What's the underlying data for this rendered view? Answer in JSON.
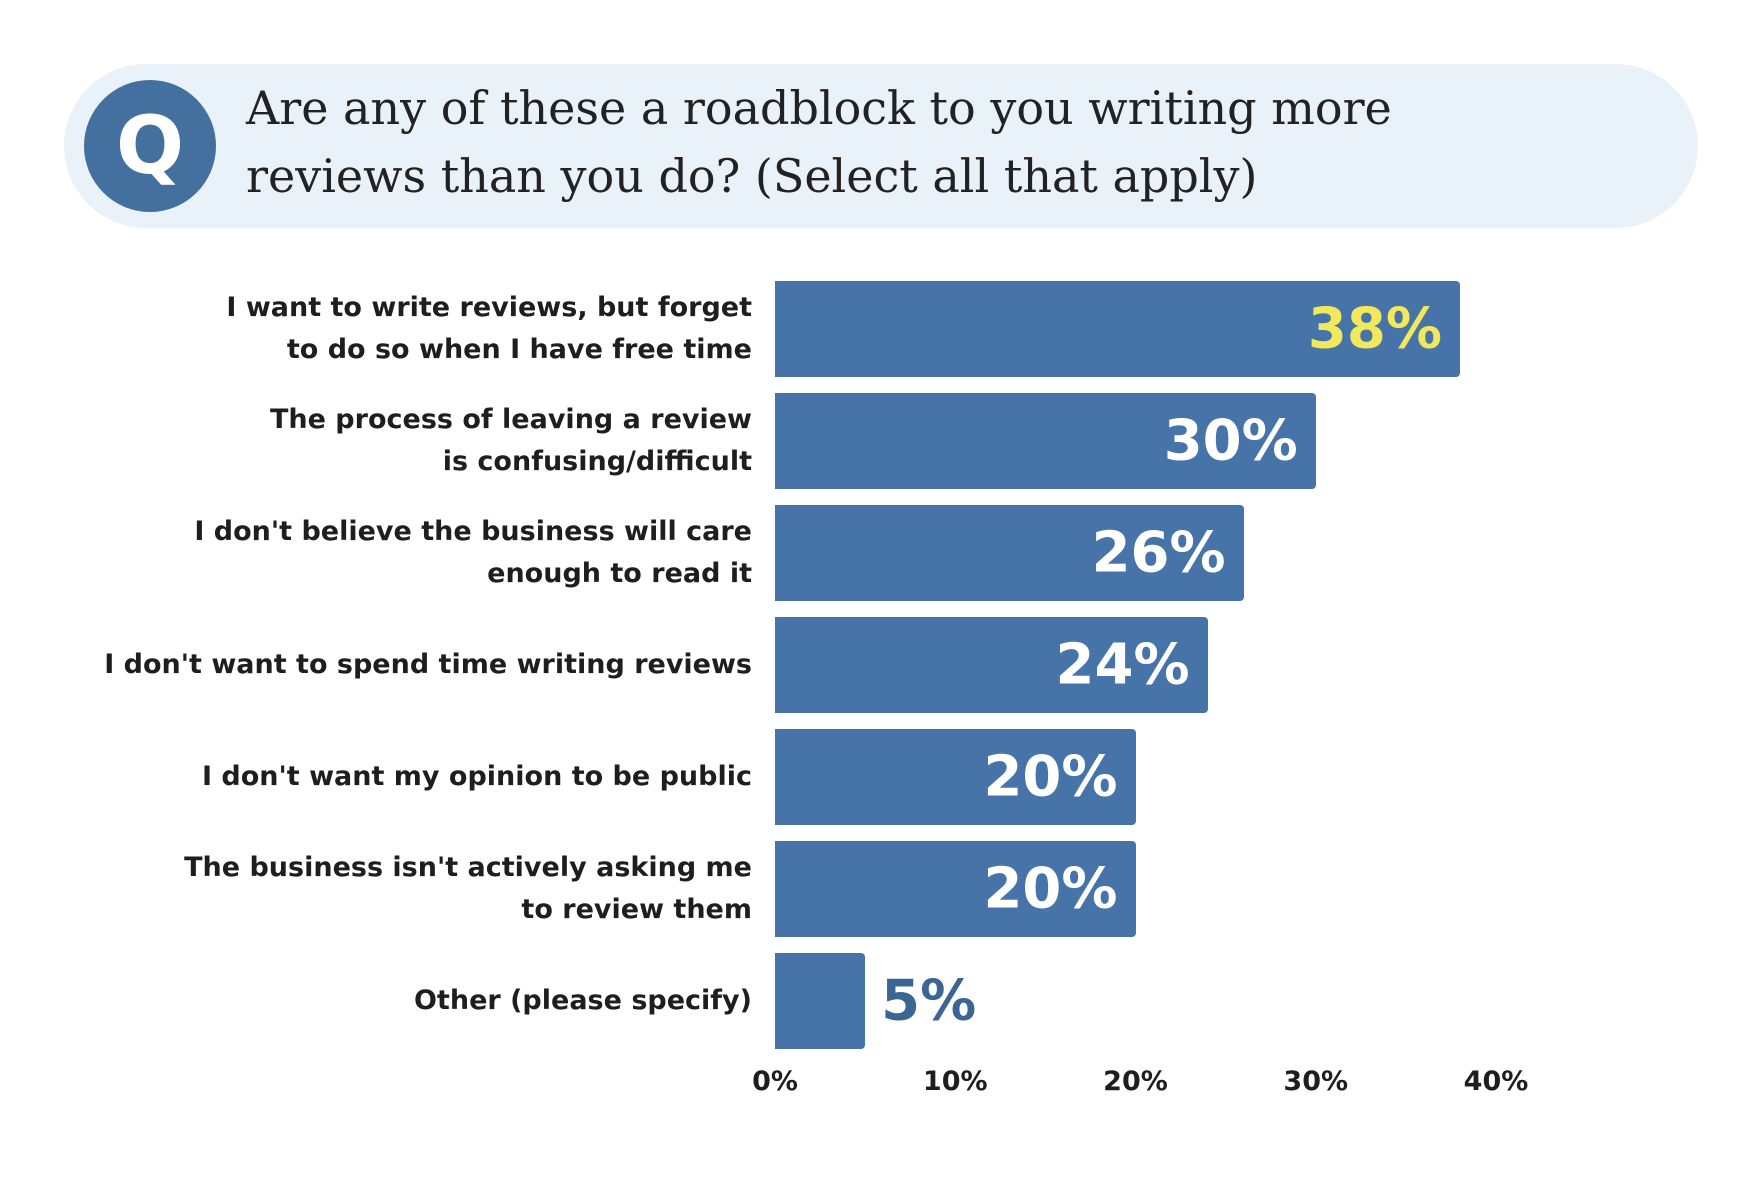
{
  "chart_data": {
    "type": "bar",
    "orientation": "horizontal",
    "badge": "Q",
    "title": "Are any of these a roadblock to you writing more\nreviews than you do? (Select all that apply)",
    "categories": [
      "I want to write reviews, but forget\nto do so when I have free time",
      "The process of leaving a review\nis confusing/difficult",
      "I don't believe the business will care\nenough to read it",
      "I don't want to spend time writing reviews",
      "I don't want my opinion to be public",
      "The business isn't actively asking me\nto review them",
      "Other (please specify)"
    ],
    "values": [
      38,
      30,
      26,
      24,
      20,
      20,
      5
    ],
    "value_labels": [
      "38%",
      "30%",
      "26%",
      "24%",
      "20%",
      "20%",
      "5%"
    ],
    "value_label_colors": [
      "#f2e85c",
      "#ffffff",
      "#ffffff",
      "#ffffff",
      "#ffffff",
      "#ffffff",
      "#3b6593"
    ],
    "color": "#4674a8",
    "xlim": [
      0,
      40
    ],
    "xticks": [
      {
        "value": 0,
        "label": "0%"
      },
      {
        "value": 10,
        "label": "10%"
      },
      {
        "value": 20,
        "label": "20%"
      },
      {
        "value": 30,
        "label": "30%"
      },
      {
        "value": 40,
        "label": "40%"
      }
    ]
  }
}
